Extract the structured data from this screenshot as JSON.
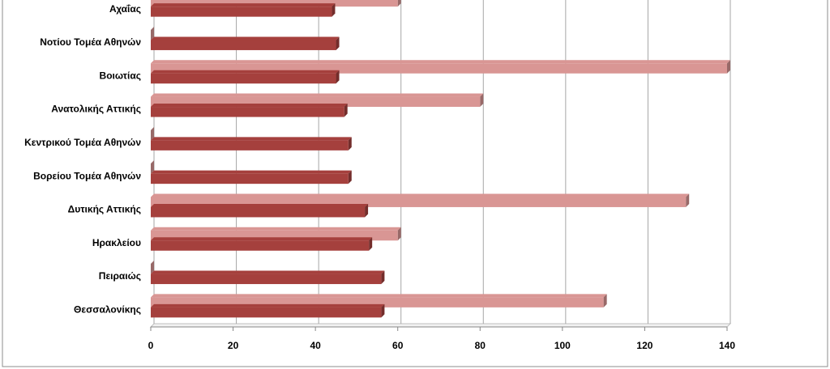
{
  "chart_data": {
    "type": "bar",
    "orientation": "horizontal",
    "categories": [
      "Αχαΐας",
      "Νοτίου Τομέα Αθηνών",
      "Βοιωτίας",
      "Ανατολικής Αττικής",
      "Κεντρικού Τομέα Αθηνών",
      "Βορείου Τομέα Αθηνών",
      "Δυτικής Αττικής",
      "Ηρακλείου",
      "Πειραιώς",
      "Θεσσαλονίκης"
    ],
    "series": [
      {
        "color": "#d99694",
        "values": [
          60,
          0,
          140,
          80,
          0,
          0,
          130,
          60,
          0,
          110
        ]
      },
      {
        "color": "#a5403d",
        "values": [
          44,
          45,
          45,
          47,
          48,
          48,
          52,
          53,
          56,
          56
        ]
      }
    ],
    "xlim": [
      0,
      140
    ],
    "xticks": [
      0,
      20,
      40,
      60,
      80,
      100,
      120,
      140
    ],
    "grid": true
  }
}
